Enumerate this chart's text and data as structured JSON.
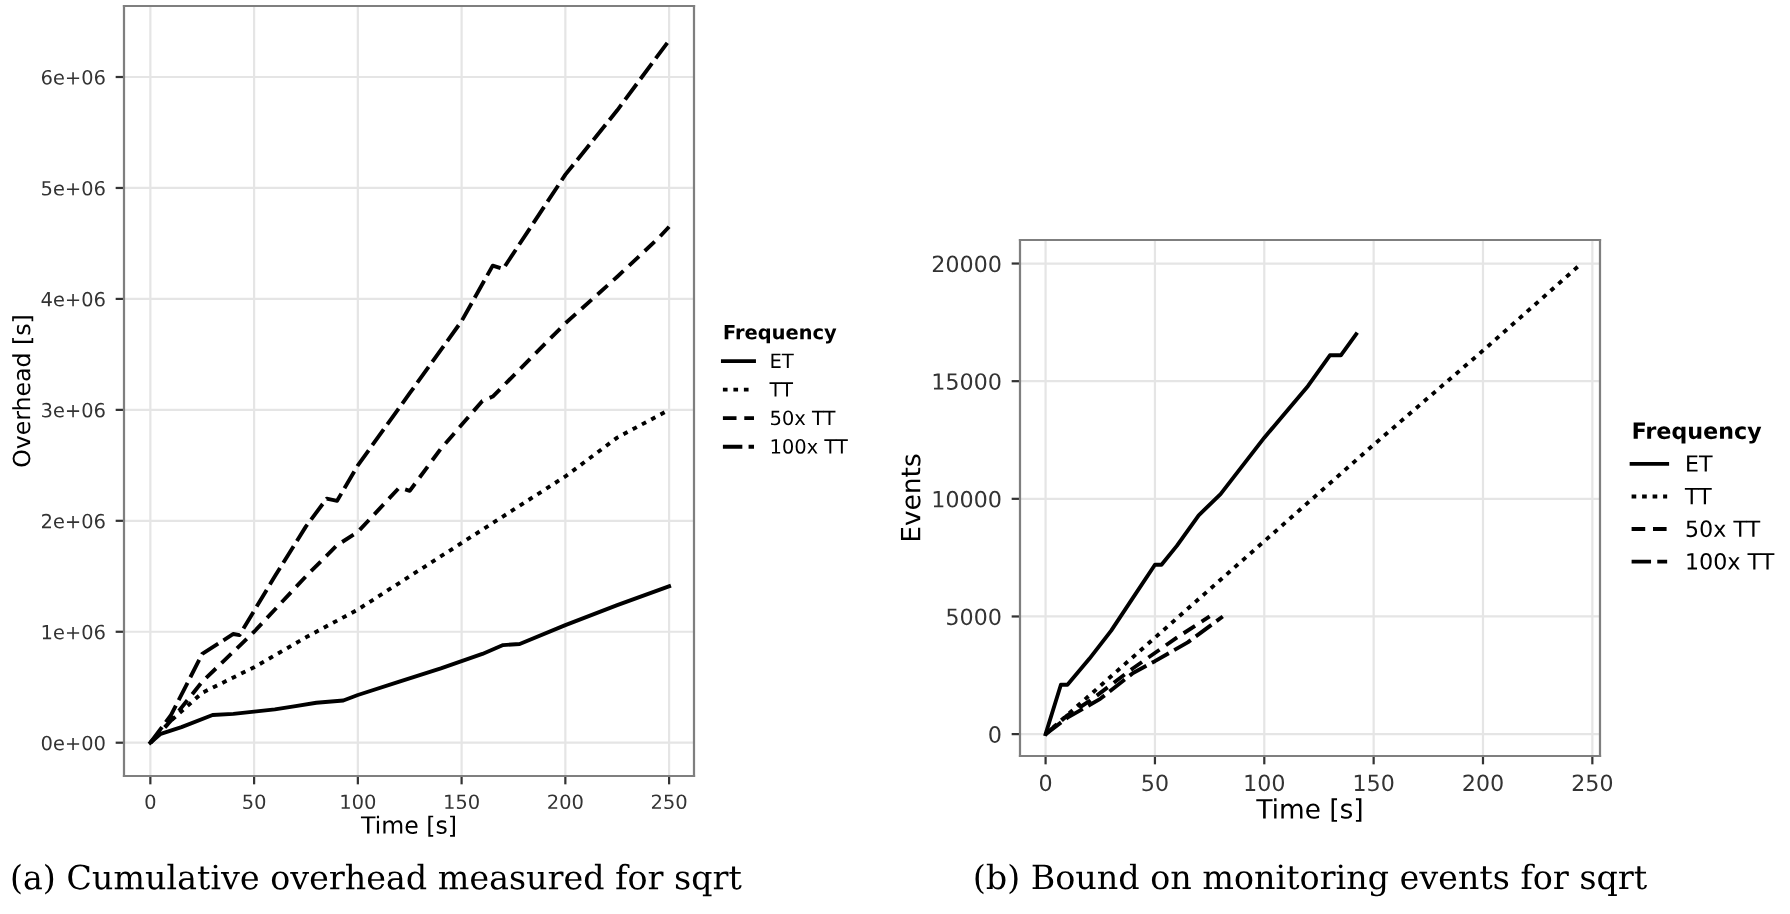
{
  "chart_data": [
    {
      "type": "line",
      "title": "(a) Cumulative overhead measured for sqrt",
      "xlabel": "Time [s]",
      "ylabel": "Overhead [s]",
      "legend_title": "Frequency",
      "legend": "right",
      "grid": true,
      "xlim": [
        -12.7,
        262
      ],
      "xticks": [
        0,
        50,
        100,
        150,
        200,
        250
      ],
      "ylim": [
        -300000,
        6640000
      ],
      "yticks": [
        {
          "value": 0,
          "label": "0e+00"
        },
        {
          "value": 1000000,
          "label": "1e+06"
        },
        {
          "value": 2000000,
          "label": "2e+06"
        },
        {
          "value": 3000000,
          "label": "3e+06"
        },
        {
          "value": 4000000,
          "label": "4e+06"
        },
        {
          "value": 5000000,
          "label": "5e+06"
        },
        {
          "value": 6000000,
          "label": "6e+06"
        }
      ],
      "series": [
        {
          "name": "ET",
          "color": "#000000",
          "line_style": "solid",
          "x": [
            0,
            5,
            15,
            30,
            40,
            50,
            60,
            70,
            80,
            93,
            100,
            120,
            140,
            160,
            170,
            178,
            200,
            225,
            250
          ],
          "values": [
            0,
            80000,
            140000,
            250000,
            260000,
            280000,
            300000,
            330000,
            360000,
            380000,
            430000,
            550000,
            670000,
            800000,
            880000,
            890000,
            1060000,
            1240000,
            1410000
          ]
        },
        {
          "name": "TT",
          "color": "#000000",
          "line_style": "dotted",
          "x": [
            0,
            10,
            25,
            50,
            75,
            100,
            125,
            150,
            175,
            200,
            225,
            250
          ],
          "values": [
            0,
            200000,
            450000,
            680000,
            950000,
            1200000,
            1500000,
            1800000,
            2100000,
            2400000,
            2750000,
            3000000
          ]
        },
        {
          "name": "50x TT",
          "color": "#000000",
          "line_style": "dashed",
          "x": [
            0,
            10,
            25,
            50,
            75,
            90,
            100,
            120,
            125,
            140,
            160,
            165,
            200,
            225,
            245,
            250
          ],
          "values": [
            0,
            200000,
            550000,
            1000000,
            1500000,
            1780000,
            1900000,
            2300000,
            2270000,
            2650000,
            3080000,
            3120000,
            3780000,
            4200000,
            4550000,
            4650000
          ]
        },
        {
          "name": "100x TT",
          "color": "#000000",
          "line_style": "dashed",
          "x": [
            0,
            10,
            25,
            40,
            43,
            60,
            75,
            85,
            90,
            100,
            125,
            150,
            165,
            170,
            200,
            225,
            250
          ],
          "values": [
            0,
            250000,
            800000,
            980000,
            970000,
            1500000,
            1950000,
            2200000,
            2180000,
            2500000,
            3150000,
            3800000,
            4300000,
            4270000,
            5120000,
            5700000,
            6330000
          ]
        }
      ]
    },
    {
      "type": "line",
      "title": "(b) Bound on monitoring events for sqrt",
      "xlabel": "Time [s]",
      "ylabel": "Events",
      "legend_title": "Frequency",
      "legend": "right",
      "grid": true,
      "xlim": [
        -11.7,
        253.5
      ],
      "xticks": [
        0,
        50,
        100,
        150,
        200,
        250
      ],
      "ylim": [
        -930,
        21000
      ],
      "yticks": [
        0,
        5000,
        10000,
        15000,
        20000
      ],
      "series": [
        {
          "name": "ET",
          "color": "#000000",
          "line_style": "solid",
          "x": [
            0,
            7,
            10,
            20,
            30,
            40,
            50,
            53,
            60,
            70,
            80,
            100,
            120,
            130,
            135,
            142
          ],
          "values": [
            0,
            2100,
            2100,
            3200,
            4400,
            5800,
            7200,
            7200,
            8000,
            9300,
            10200,
            12600,
            14800,
            16100,
            16100,
            17000
          ]
        },
        {
          "name": "TT",
          "color": "#000000",
          "line_style": "dotted",
          "x": [
            0,
            50,
            100,
            150,
            200,
            245
          ],
          "values": [
            0,
            4100,
            8200,
            12300,
            16300,
            20000
          ]
        },
        {
          "name": "50x TT",
          "color": "#000000",
          "line_style": "dashed",
          "x": [
            0,
            10,
            20,
            40,
            60,
            75
          ],
          "values": [
            0,
            800,
            1400,
            2800,
            4100,
            5000
          ]
        },
        {
          "name": "100x TT",
          "color": "#000000",
          "line_style": "dashed",
          "x": [
            0,
            10,
            25,
            40,
            50,
            65,
            81
          ],
          "values": [
            0,
            700,
            1500,
            2600,
            3100,
            3900,
            5000
          ]
        }
      ]
    }
  ]
}
